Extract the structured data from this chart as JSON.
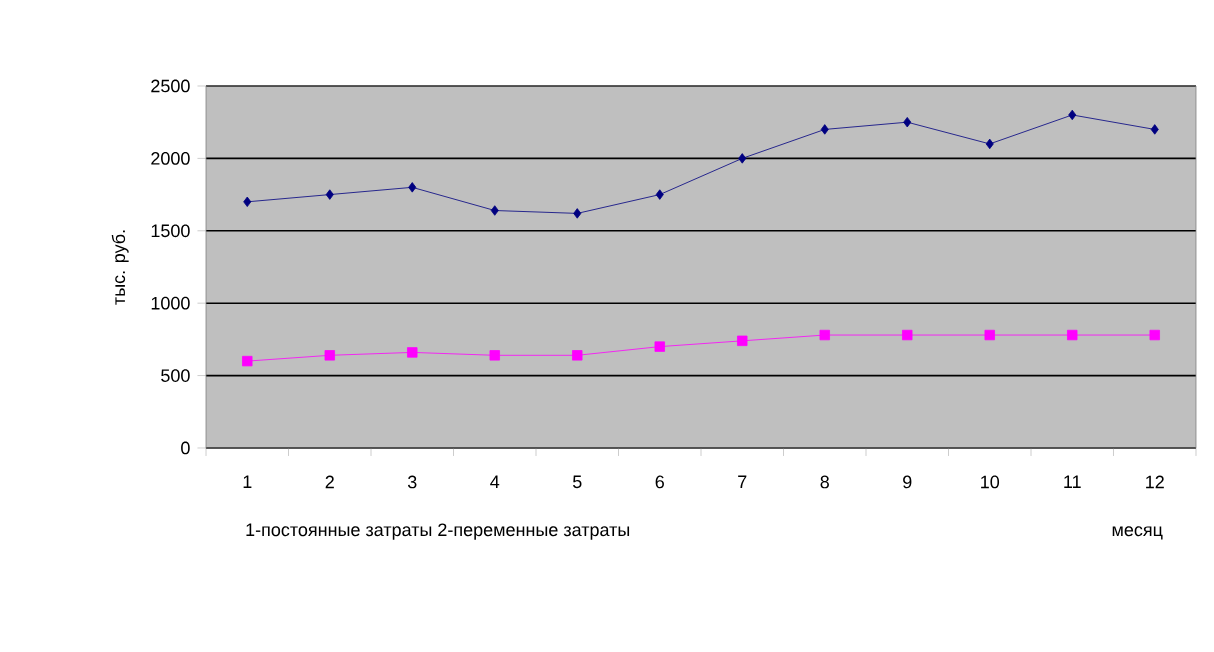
{
  "chart_data": {
    "type": "line",
    "ylabel": "тыс. руб.",
    "xlabel": "месяц",
    "annotations": [
      "1-постоянные затраты  2-переменные затраты"
    ],
    "categories": [
      "1",
      "2",
      "3",
      "4",
      "5",
      "6",
      "7",
      "8",
      "9",
      "10",
      "11",
      "12"
    ],
    "series": [
      {
        "color": "#000080",
        "marker": "diamond",
        "values": [
          1700,
          1750,
          1800,
          1640,
          1620,
          1750,
          2000,
          2200,
          2250,
          2100,
          2300,
          2200
        ]
      },
      {
        "color": "#ff00ff",
        "marker": "square",
        "values": [
          600,
          640,
          660,
          640,
          640,
          700,
          740,
          780,
          780,
          780,
          780,
          780
        ]
      }
    ],
    "ylim": [
      0,
      2500
    ],
    "yticks": [
      0,
      500,
      1000,
      1500,
      2000,
      2500
    ],
    "grid": "y"
  }
}
